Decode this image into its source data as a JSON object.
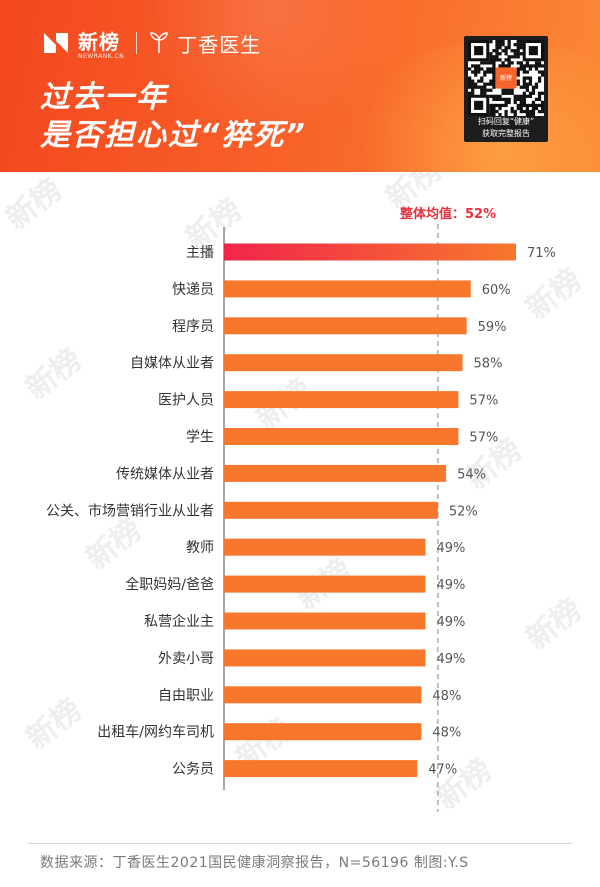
{
  "header": {
    "brand": "新榜",
    "brand_en": "NEWRANK.CN",
    "partner": "丁香医生",
    "title_line1": "过去一年",
    "title_line2": "是否担心过“猝死”",
    "qr_caption_line1": "扫码回复“健康”",
    "qr_caption_line2": "获取完整报告",
    "qr_logo_text": "新榜"
  },
  "chart_data": {
    "type": "bar",
    "orientation": "horizontal",
    "categories": [
      "主播",
      "快递员",
      "程序员",
      "自媒体从业者",
      "医护人员",
      "学生",
      "传统媒体从业者",
      "公关、市场营销行业从业者",
      "教师",
      "全职妈妈/爸爸",
      "私营企业主",
      "外卖小哥",
      "自由职业",
      "出租车/网约车司机",
      "公务员"
    ],
    "values": [
      71,
      60,
      59,
      58,
      57,
      57,
      54,
      52,
      49,
      49,
      49,
      49,
      48,
      48,
      47
    ],
    "value_labels": [
      "71%",
      "60%",
      "59%",
      "58%",
      "57%",
      "57%",
      "54%",
      "52%",
      "49%",
      "49%",
      "49%",
      "49%",
      "48%",
      "48%",
      "47%"
    ],
    "reference_line": {
      "value": 52,
      "label": "整体均值：52%"
    },
    "highlight_index": 0,
    "colors": {
      "bar": "#f7782d",
      "highlight_start": "#f2254a",
      "highlight_end": "#f7782d",
      "reference": "#9a9a9a",
      "reference_label": "#e8313c"
    }
  },
  "watermark": "新榜",
  "footer": {
    "source": "数据来源：丁香医生2021国民健康洞察报告，N=56196 制图:Y.S"
  }
}
